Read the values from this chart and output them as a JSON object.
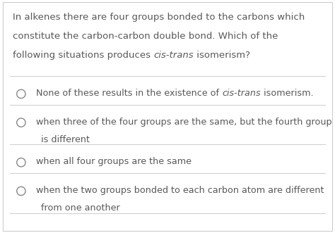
{
  "background_color": "#ffffff",
  "border_color": "#cccccc",
  "text_color": "#585858",
  "circle_color": "#888888",
  "line_color": "#cccccc",
  "font_size_question": 9.5,
  "font_size_option": 9.2,
  "q_lines": [
    "In alkenes there are four groups bonded to the carbons which",
    "constitute the carbon-carbon double bond. Which of the",
    "following situations produces "
  ],
  "q_italic": "cis-trans",
  "q_end": " isomerism?",
  "options": [
    {
      "parts": [
        {
          "text": "None of these results in the existence of ",
          "italic": false
        },
        {
          "text": "cis-trans",
          "italic": true
        },
        {
          "text": " isomerism.",
          "italic": false
        }
      ],
      "line2": null
    },
    {
      "parts": [
        {
          "text": "when three of the four groups are the same, but the fourth group",
          "italic": false
        }
      ],
      "line2": "is different"
    },
    {
      "parts": [
        {
          "text": "when all four groups are the same",
          "italic": false
        }
      ],
      "line2": null
    },
    {
      "parts": [
        {
          "text": "when the two groups bonded to each carbon atom are different",
          "italic": false
        }
      ],
      "line2": "from one another"
    }
  ]
}
